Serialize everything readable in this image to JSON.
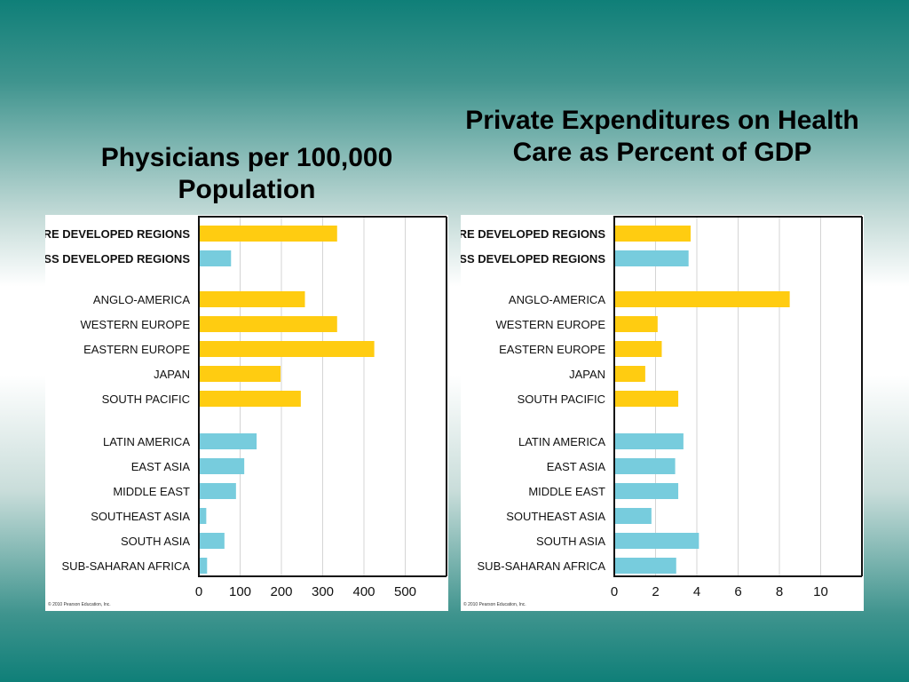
{
  "colors": {
    "more_developed": "#ffcc11",
    "less_developed": "#77ccdd",
    "gridline": "#d4d4d4",
    "frame": "#111111"
  },
  "chart_data": [
    {
      "type": "bar",
      "orientation": "horizontal",
      "title": "Physicians per 100,000 Population",
      "copyright": "© 2010 Pearson Education, Inc.",
      "xlim": [
        0,
        600
      ],
      "xticks": [
        0,
        100,
        200,
        300,
        400,
        500
      ],
      "grid": true,
      "categories": [
        {
          "label": "MORE DEVELOPED REGIONS",
          "value": 335,
          "group": "more",
          "bold": true
        },
        {
          "label": "LESS DEVELOPED REGIONS",
          "value": 78,
          "group": "less",
          "bold": true
        },
        {
          "label": "ANGLO-AMERICA",
          "value": 257,
          "group": "more",
          "bold": false
        },
        {
          "label": "WESTERN EUROPE",
          "value": 335,
          "group": "more",
          "bold": false
        },
        {
          "label": "EASTERN EUROPE",
          "value": 425,
          "group": "more",
          "bold": false
        },
        {
          "label": "JAPAN",
          "value": 198,
          "group": "more",
          "bold": false
        },
        {
          "label": "SOUTH PACIFIC",
          "value": 247,
          "group": "more",
          "bold": false
        },
        {
          "label": "LATIN AMERICA",
          "value": 140,
          "group": "less",
          "bold": false
        },
        {
          "label": "EAST ASIA",
          "value": 110,
          "group": "less",
          "bold": false
        },
        {
          "label": "MIDDLE EAST",
          "value": 90,
          "group": "less",
          "bold": false
        },
        {
          "label": "SOUTHEAST ASIA",
          "value": 18,
          "group": "less",
          "bold": false
        },
        {
          "label": "SOUTH ASIA",
          "value": 62,
          "group": "less",
          "bold": false
        },
        {
          "label": "SUB-SAHARAN AFRICA",
          "value": 20,
          "group": "less",
          "bold": false
        }
      ]
    },
    {
      "type": "bar",
      "orientation": "horizontal",
      "title": "Private Expenditures on Health Care as Percent of GDP",
      "copyright": "© 2010 Pearson Education, Inc.",
      "xlim": [
        0,
        12
      ],
      "xticks": [
        0,
        2,
        4,
        6,
        8,
        10
      ],
      "grid": true,
      "categories": [
        {
          "label": "MORE DEVELOPED REGIONS",
          "value": 3.7,
          "group": "more",
          "bold": true
        },
        {
          "label": "LESS DEVELOPED REGIONS",
          "value": 3.6,
          "group": "less",
          "bold": true
        },
        {
          "label": "ANGLO-AMERICA",
          "value": 8.5,
          "group": "more",
          "bold": false
        },
        {
          "label": "WESTERN EUROPE",
          "value": 2.1,
          "group": "more",
          "bold": false
        },
        {
          "label": "EASTERN EUROPE",
          "value": 2.3,
          "group": "more",
          "bold": false
        },
        {
          "label": "JAPAN",
          "value": 1.5,
          "group": "more",
          "bold": false
        },
        {
          "label": "SOUTH PACIFIC",
          "value": 3.1,
          "group": "more",
          "bold": false
        },
        {
          "label": "LATIN AMERICA",
          "value": 3.35,
          "group": "less",
          "bold": false
        },
        {
          "label": "EAST ASIA",
          "value": 2.95,
          "group": "less",
          "bold": false
        },
        {
          "label": "MIDDLE EAST",
          "value": 3.1,
          "group": "less",
          "bold": false
        },
        {
          "label": "SOUTHEAST ASIA",
          "value": 1.8,
          "group": "less",
          "bold": false
        },
        {
          "label": "SOUTH ASIA",
          "value": 4.1,
          "group": "less",
          "bold": false
        },
        {
          "label": "SUB-SAHARAN AFRICA",
          "value": 3.0,
          "group": "less",
          "bold": false
        }
      ]
    }
  ]
}
